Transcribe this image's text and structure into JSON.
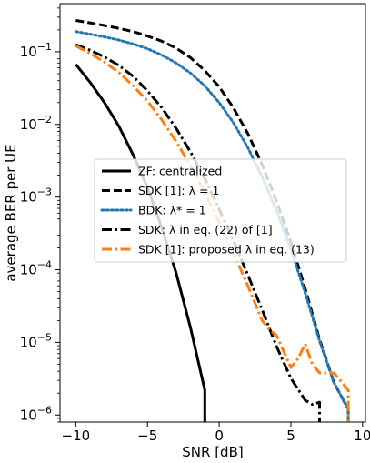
{
  "chart_data": {
    "type": "line",
    "xlabel": "SNR [dB]",
    "ylabel": "average BER per UE",
    "xlim": [
      -11.1,
      10.2
    ],
    "ylim": [
      8e-07,
      0.46
    ],
    "yscale": "log",
    "grid": false,
    "legend_position": "center",
    "x_ticks": [
      -10,
      -5,
      0,
      5,
      10
    ],
    "x_tick_labels": [
      "−10",
      "−5",
      "0",
      "5",
      "10"
    ],
    "y_ticks": [
      1e-06,
      1e-05,
      0.0001,
      0.001,
      0.01,
      0.1
    ],
    "y_tick_bases": [
      "10",
      "10",
      "10",
      "10",
      "10",
      "10"
    ],
    "y_tick_exps": [
      "−6",
      "−5",
      "−4",
      "−3",
      "−2",
      "−1"
    ],
    "series": [
      {
        "name": "ZF: centralized",
        "color": "#000000",
        "dash": "solid",
        "x": [
          -10,
          -9,
          -8,
          -7,
          -6,
          -5,
          -4,
          -3,
          -2,
          -1,
          -1
        ],
        "y": [
          0.067,
          0.038,
          0.02,
          0.0095,
          0.0038,
          0.00135,
          0.00038,
          9e-05,
          1.6e-05,
          2.2e-06,
          7e-07
        ]
      },
      {
        "name": "SDK [1]: λ = 1",
        "color": "#000000",
        "dash": "dashed",
        "x": [
          -10,
          -9,
          -8,
          -7,
          -6,
          -5,
          -4,
          -3,
          -2,
          -1,
          0,
          1,
          2,
          3,
          4,
          5,
          6,
          7,
          8,
          9,
          9
        ],
        "y": [
          0.27,
          0.25,
          0.23,
          0.21,
          0.19,
          0.165,
          0.14,
          0.112,
          0.083,
          0.055,
          0.033,
          0.0168,
          0.0075,
          0.0028,
          0.00088,
          0.00024,
          5.5e-05,
          1.1e-05,
          2.8e-06,
          1.2e-06,
          7e-07
        ]
      },
      {
        "name": "BDK: λ* = 1",
        "color": "#1f77b4",
        "dash": "dotted",
        "x": [
          -10,
          -9,
          -8,
          -7,
          -6,
          -5,
          -4,
          -3,
          -2,
          -1,
          0,
          1,
          2,
          3,
          4,
          5,
          6,
          7,
          8,
          9,
          9
        ],
        "y": [
          0.19,
          0.175,
          0.16,
          0.145,
          0.128,
          0.11,
          0.09,
          0.07,
          0.051,
          0.034,
          0.02,
          0.0105,
          0.0048,
          0.0019,
          0.00065,
          0.00019,
          4.8e-05,
          1.05e-05,
          2.8e-06,
          1.2e-06,
          7e-07
        ]
      },
      {
        "name": "SDK: λ in eq. (22) of [1]",
        "color": "#000000",
        "dash": "dashdot",
        "x": [
          -10,
          -9,
          -8,
          -7,
          -6,
          -5,
          -4,
          -3,
          -2,
          -1,
          0,
          1,
          2,
          3,
          4,
          5,
          6,
          6.5,
          7,
          7,
          7.5
        ],
        "y": [
          0.125,
          0.105,
          0.085,
          0.065,
          0.046,
          0.029,
          0.017,
          0.0088,
          0.0042,
          0.0018,
          0.00068,
          0.00025,
          8.5e-05,
          2.8e-05,
          8.8e-06,
          3.2e-06,
          1.6e-06,
          1.4e-06,
          1.5e-06,
          7e-07,
          7e-07
        ]
      },
      {
        "name": "SDK [1]: proposed λ in eq. (13)",
        "color": "#ff7f0e",
        "dash": "dashdot",
        "x": [
          -10,
          -9,
          -8,
          -7,
          -6,
          -5,
          -4,
          -3,
          -2,
          -1,
          0,
          1,
          2,
          3,
          3.5,
          4,
          4.5,
          5,
          5.5,
          6,
          6.5,
          7,
          8,
          9,
          9
        ],
        "y": [
          0.12,
          0.095,
          0.072,
          0.052,
          0.034,
          0.021,
          0.0115,
          0.0058,
          0.0027,
          0.00115,
          0.00045,
          0.00017,
          6e-05,
          2e-05,
          1.5e-05,
          1.25e-05,
          7.5e-06,
          4.5e-06,
          6e-06,
          9.5e-06,
          5e-06,
          3.8e-06,
          3.8e-06,
          2.2e-06,
          7e-07
        ]
      }
    ]
  }
}
